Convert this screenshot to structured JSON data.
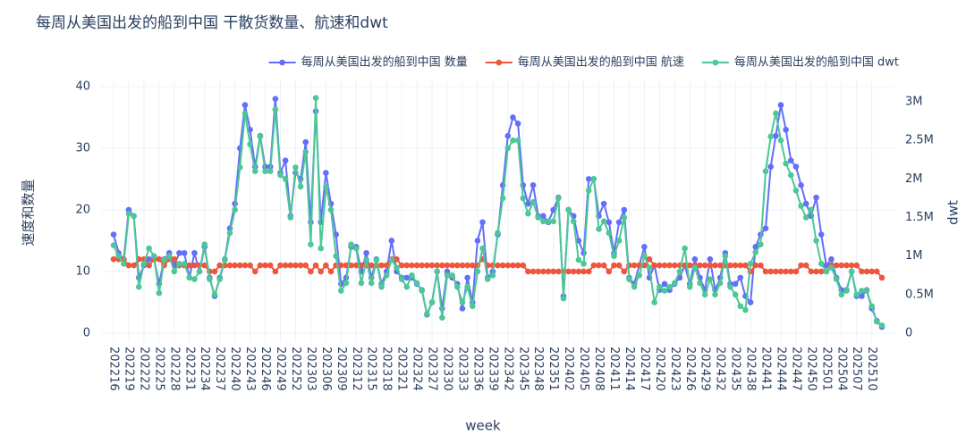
{
  "chart_data": {
    "type": "line",
    "title": "每周从美国出发的船到中国 干散货数量、航速和dwt",
    "x_label": "week",
    "y_label": "速度和数量",
    "y2_label": "dwt",
    "legend": "top right",
    "grid": true,
    "ylim": [
      -1.45,
      41.0
    ],
    "yticks": [
      0,
      10,
      20,
      30,
      40
    ],
    "y2lim": [
      -0.116,
      3.278
    ],
    "y2ticks": [
      0,
      {
        "value": 0.5,
        "label": "0.5M"
      },
      {
        "value": 1,
        "label": "1M"
      },
      {
        "value": 1.5,
        "label": "1.5M"
      },
      {
        "value": 2,
        "label": "2M"
      },
      {
        "value": 2.5,
        "label": "2.5M"
      },
      {
        "value": 3,
        "label": "3M"
      }
    ],
    "categories": [
      "202216",
      null,
      null,
      "202219",
      null,
      null,
      "202222",
      null,
      null,
      "202225",
      null,
      null,
      "202228",
      null,
      null,
      "202231",
      null,
      null,
      "202234",
      null,
      null,
      "202237",
      null,
      null,
      "202240",
      null,
      null,
      "202243",
      null,
      null,
      "202246",
      null,
      null,
      "202249",
      null,
      null,
      "202252",
      null,
      null,
      "202303",
      null,
      null,
      "202306",
      null,
      null,
      "202309",
      null,
      null,
      "202312",
      null,
      null,
      "202315",
      null,
      null,
      "202318",
      null,
      null,
      "202321",
      null,
      null,
      "202324",
      null,
      null,
      "202327",
      null,
      null,
      "202330",
      null,
      null,
      "202333",
      null,
      null,
      "202336",
      null,
      null,
      "202339",
      null,
      null,
      "202342",
      null,
      null,
      "202345",
      null,
      null,
      "202348",
      null,
      null,
      "202351",
      null,
      null,
      "202402",
      null,
      null,
      "202405",
      null,
      null,
      "202408",
      null,
      null,
      "202411",
      null,
      null,
      "202414",
      null,
      null,
      "202417",
      null,
      null,
      "202420",
      null,
      null,
      "202423",
      null,
      null,
      "202426",
      null,
      null,
      "202429",
      null,
      null,
      "202432",
      null,
      null,
      "202435",
      null,
      null,
      "202438",
      null,
      null,
      "202441",
      null,
      null,
      "202444",
      null,
      null,
      "202447",
      null,
      null,
      "202450",
      null,
      null,
      "202501",
      null,
      null,
      "202504",
      null,
      null,
      "202507",
      null,
      null,
      "202510",
      null,
      null
    ],
    "series": [
      {
        "name": "每周从美国出发的船到中国 数量",
        "color": "#636efa",
        "values": [
          16,
          13,
          12,
          20,
          19,
          9,
          11,
          12,
          12,
          8,
          12,
          13,
          11,
          13,
          13,
          9,
          13,
          10,
          14,
          9,
          6,
          9,
          12,
          17,
          21,
          30,
          37,
          33,
          27,
          32,
          27,
          27,
          38,
          26,
          28,
          19,
          26,
          25,
          31,
          18,
          36,
          18,
          26,
          21,
          16,
          8,
          9,
          14,
          14,
          10,
          13,
          9,
          12,
          8,
          10,
          15,
          10,
          9,
          9,
          9,
          8,
          7,
          3,
          5,
          10,
          4,
          10,
          9,
          8,
          4,
          9,
          5,
          15,
          18,
          9,
          10,
          16,
          24,
          32,
          35,
          34,
          24,
          21,
          24,
          19,
          19,
          18,
          20,
          22,
          6,
          20,
          19,
          15,
          13,
          25,
          25,
          19,
          21,
          18,
          13,
          18,
          20,
          9,
          8,
          11,
          14,
          9,
          11,
          7,
          8,
          7,
          8,
          9,
          11,
          8,
          12,
          9,
          7,
          12,
          7,
          9,
          13,
          8,
          8,
          9,
          6,
          5,
          14,
          16,
          17,
          27,
          32,
          37,
          33,
          28,
          27,
          24,
          21,
          19,
          22,
          16,
          11,
          12,
          9,
          7,
          7,
          10,
          6,
          6,
          7,
          4,
          2,
          1
        ]
      },
      {
        "name": "每周从美国出发的船到中国 航速",
        "color": "#ef553b",
        "values": [
          12,
          12,
          12,
          11,
          11,
          12,
          12,
          11,
          12,
          12,
          11,
          12,
          12,
          11,
          11,
          11,
          11,
          11,
          11,
          10,
          10,
          11,
          11,
          11,
          11,
          11,
          11,
          11,
          10,
          11,
          11,
          11,
          10,
          11,
          11,
          11,
          11,
          11,
          11,
          10,
          11,
          10,
          11,
          10,
          11,
          11,
          11,
          11,
          11,
          11,
          11,
          11,
          11,
          11,
          11,
          12,
          12,
          11,
          11,
          11,
          11,
          11,
          11,
          11,
          11,
          11,
          11,
          11,
          11,
          11,
          11,
          11,
          11,
          12,
          11,
          11,
          11,
          11,
          11,
          11,
          11,
          11,
          10,
          10,
          10,
          10,
          10,
          10,
          10,
          10,
          10,
          10,
          10,
          10,
          10,
          11,
          11,
          11,
          10,
          11,
          11,
          10,
          11,
          11,
          11,
          11,
          12,
          11,
          11,
          11,
          11,
          11,
          11,
          11,
          11,
          11,
          11,
          11,
          11,
          11,
          11,
          11,
          11,
          11,
          11,
          11,
          10,
          11,
          11,
          10,
          10,
          10,
          10,
          10,
          10,
          10,
          11,
          11,
          10,
          10,
          10,
          10,
          11,
          11,
          11,
          11,
          11,
          11,
          10,
          10,
          10,
          10,
          9
        ]
      },
      {
        "name": "每周从美国出发的船到中国 dwt",
        "color": "#4cc795",
        "axis": "y2",
        "values": [
          1.14,
          1.0,
          0.9,
          1.55,
          1.52,
          0.6,
          0.9,
          1.1,
          1.0,
          0.52,
          0.95,
          1.0,
          0.8,
          0.9,
          0.9,
          0.72,
          0.7,
          0.8,
          1.15,
          0.7,
          0.5,
          0.7,
          0.95,
          1.3,
          1.6,
          2.15,
          2.85,
          2.45,
          2.1,
          2.55,
          2.1,
          2.1,
          2.9,
          2.05,
          2.0,
          1.5,
          2.15,
          1.9,
          2.35,
          1.15,
          3.05,
          1.1,
          1.9,
          1.6,
          1.0,
          0.55,
          0.65,
          1.15,
          1.1,
          0.65,
          0.95,
          0.65,
          0.95,
          0.6,
          0.75,
          0.95,
          0.85,
          0.7,
          0.6,
          0.75,
          0.65,
          0.55,
          0.25,
          0.4,
          0.8,
          0.2,
          0.75,
          0.75,
          0.6,
          0.4,
          0.6,
          0.35,
          0.8,
          1.1,
          0.7,
          0.75,
          1.3,
          1.75,
          2.4,
          2.5,
          2.5,
          1.75,
          1.55,
          1.7,
          1.5,
          1.45,
          1.45,
          1.45,
          1.75,
          0.45,
          1.6,
          1.45,
          0.95,
          0.9,
          1.85,
          2.0,
          1.35,
          1.45,
          1.3,
          1.0,
          1.2,
          1.5,
          0.7,
          0.6,
          0.75,
          1.0,
          0.85,
          0.4,
          0.6,
          0.55,
          0.6,
          0.65,
          0.8,
          1.1,
          0.6,
          0.85,
          0.65,
          0.5,
          0.7,
          0.5,
          0.65,
          1.0,
          0.6,
          0.5,
          0.35,
          0.3,
          0.9,
          1.05,
          1.15,
          2.1,
          2.55,
          2.85,
          2.5,
          2.2,
          2.05,
          1.85,
          1.65,
          1.5,
          1.6,
          1.2,
          0.9,
          0.8,
          0.85,
          0.7,
          0.5,
          0.55,
          0.8,
          0.5,
          0.55,
          0.55,
          0.35,
          0.15,
          0.1
        ]
      }
    ]
  }
}
